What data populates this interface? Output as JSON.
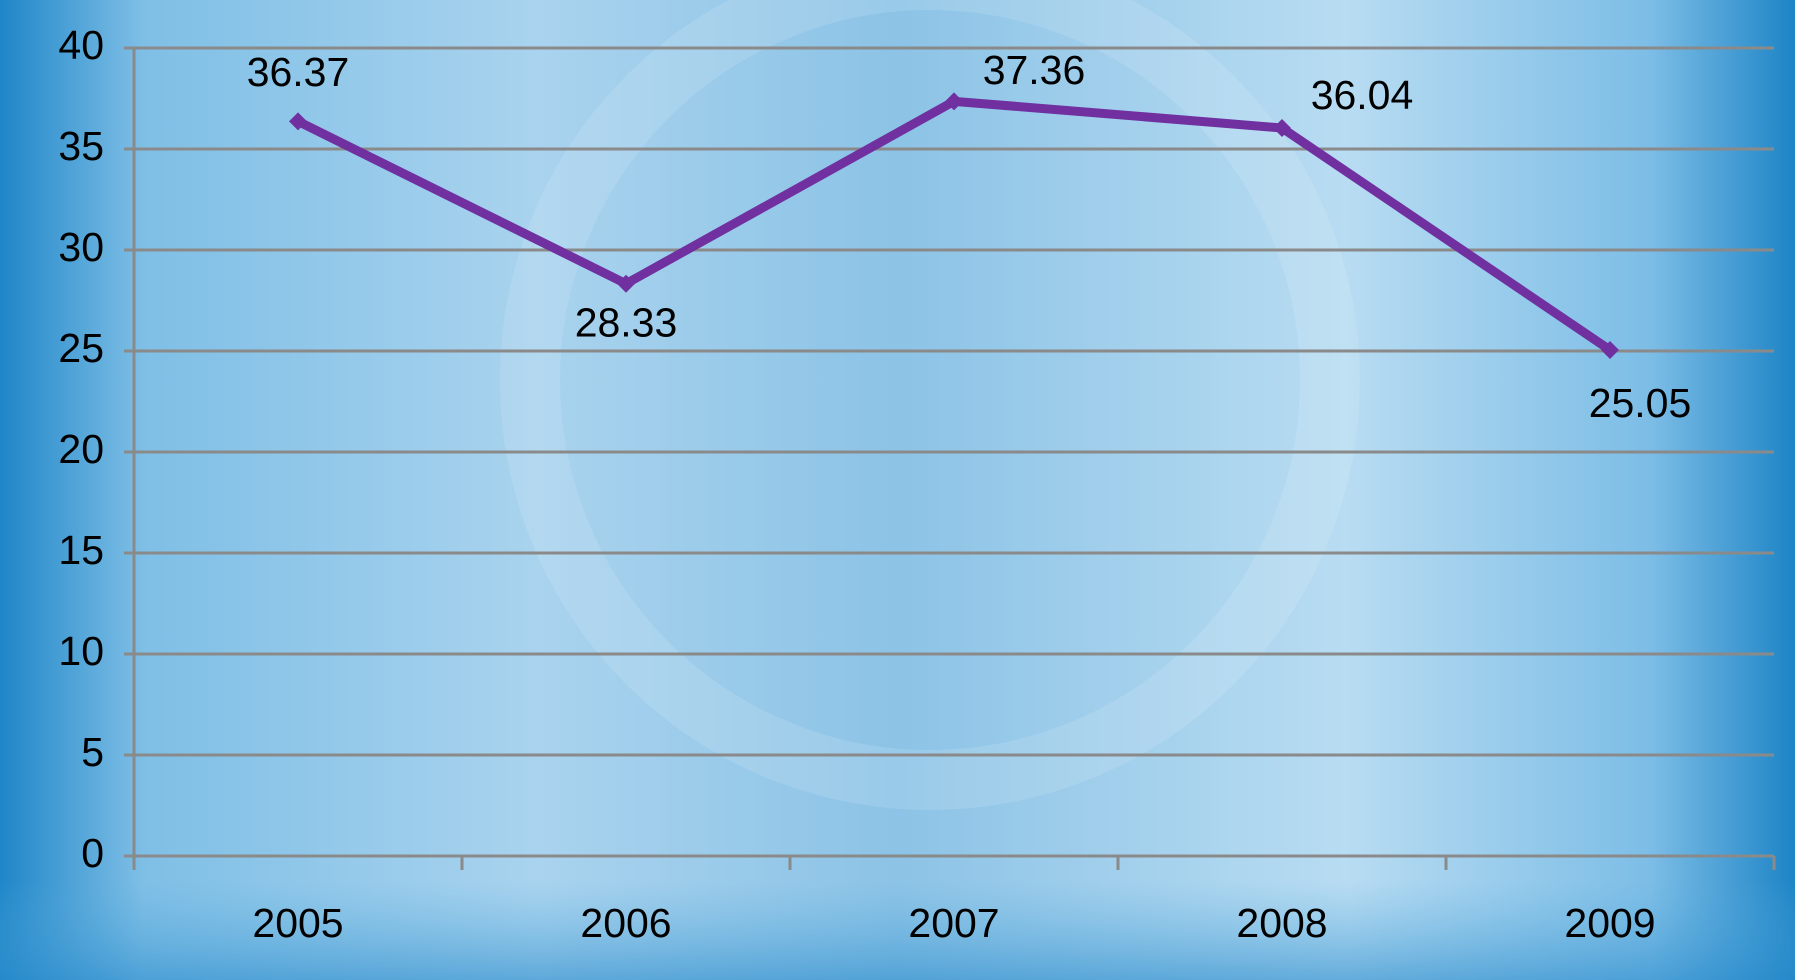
{
  "chart_data": {
    "type": "line",
    "categories": [
      "2005",
      "2006",
      "2007",
      "2008",
      "2009"
    ],
    "values": [
      36.37,
      28.33,
      37.36,
      36.04,
      25.05
    ],
    "color": "#7030a0",
    "ylim": [
      0,
      40
    ],
    "yticks": [
      0,
      5,
      10,
      15,
      20,
      25,
      30,
      35,
      40
    ],
    "grid": true
  }
}
